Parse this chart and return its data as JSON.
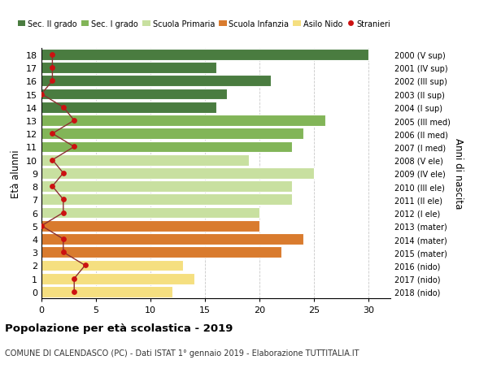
{
  "ages": [
    18,
    17,
    16,
    15,
    14,
    13,
    12,
    11,
    10,
    9,
    8,
    7,
    6,
    5,
    4,
    3,
    2,
    1,
    0
  ],
  "bar_values": [
    30,
    16,
    21,
    17,
    16,
    26,
    24,
    23,
    19,
    25,
    23,
    23,
    20,
    20,
    24,
    22,
    13,
    14,
    12
  ],
  "stranieri": [
    1,
    1,
    1,
    0,
    2,
    3,
    1,
    3,
    1,
    2,
    1,
    2,
    2,
    0,
    2,
    2,
    4,
    3,
    3
  ],
  "right_labels": [
    "2000 (V sup)",
    "2001 (IV sup)",
    "2002 (III sup)",
    "2003 (II sup)",
    "2004 (I sup)",
    "2005 (III med)",
    "2006 (II med)",
    "2007 (I med)",
    "2008 (V ele)",
    "2009 (IV ele)",
    "2010 (III ele)",
    "2011 (II ele)",
    "2012 (I ele)",
    "2013 (mater)",
    "2014 (mater)",
    "2015 (mater)",
    "2016 (nido)",
    "2017 (nido)",
    "2018 (nido)"
  ],
  "bar_colors": [
    "#4a7c40",
    "#4a7c40",
    "#4a7c40",
    "#4a7c40",
    "#4a7c40",
    "#82b558",
    "#82b558",
    "#82b558",
    "#c8e0a0",
    "#c8e0a0",
    "#c8e0a0",
    "#c8e0a0",
    "#c8e0a0",
    "#d97b2e",
    "#d97b2e",
    "#d97b2e",
    "#f5df80",
    "#f5df80",
    "#f5df80"
  ],
  "legend_labels": [
    "Sec. II grado",
    "Sec. I grado",
    "Scuola Primaria",
    "Scuola Infanzia",
    "Asilo Nido",
    "Stranieri"
  ],
  "legend_colors": [
    "#4a7c40",
    "#82b558",
    "#c8e0a0",
    "#d97b2e",
    "#f5df80",
    "#cc1111"
  ],
  "stranieri_color": "#cc1111",
  "line_color": "#8b3030",
  "ylabel": "Età alunni",
  "right_ylabel": "Anni di nascita",
  "title": "Popolazione per età scolastica - 2019",
  "subtitle": "COMUNE DI CALENDASCO (PC) - Dati ISTAT 1° gennaio 2019 - Elaborazione TUTTITALIA.IT",
  "xlim": [
    0,
    32
  ],
  "xticks": [
    0,
    5,
    10,
    15,
    20,
    25,
    30
  ],
  "background_color": "#ffffff",
  "grid_color": "#c8c8c8"
}
